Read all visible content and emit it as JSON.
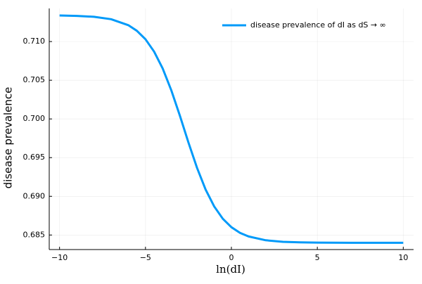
{
  "chart_data": {
    "type": "line",
    "x_label": "ln(dI)",
    "y_label": "disease prevalence",
    "x": [
      -10,
      -9,
      -8,
      -7,
      -6,
      -5.5,
      -5,
      -4.5,
      -4,
      -3.5,
      -3,
      -2.5,
      -2,
      -1.5,
      -1,
      -0.5,
      0,
      0.5,
      1,
      2,
      3,
      4,
      5,
      6,
      7,
      8,
      9,
      10
    ],
    "series": [
      {
        "name": "disease prevalence of dI as dS → ∞",
        "color": "#009af9",
        "values": [
          0.71337,
          0.71332,
          0.7132,
          0.71289,
          0.71212,
          0.71139,
          0.7103,
          0.70871,
          0.70653,
          0.70372,
          0.70044,
          0.69696,
          0.69368,
          0.69087,
          0.68869,
          0.6871,
          0.68601,
          0.68528,
          0.68481,
          0.68432,
          0.68412,
          0.68405,
          0.68402,
          0.68401,
          0.684,
          0.684,
          0.684,
          0.684
        ]
      }
    ],
    "xlim": [
      -10.6,
      10.6
    ],
    "xticks": [
      {
        "value": -10,
        "label": "−10"
      },
      {
        "value": -5,
        "label": "−5"
      },
      0,
      5,
      10
    ],
    "ylim": [
      0.68312,
      0.71428
    ],
    "yticks": [
      0.685,
      {
        "value": 0.69,
        "label": "0.690"
      },
      0.695,
      {
        "value": 0.7,
        "label": "0.700"
      },
      0.705,
      {
        "value": 0.71,
        "label": "0.710"
      }
    ],
    "grid": true,
    "legend": "top-right"
  }
}
